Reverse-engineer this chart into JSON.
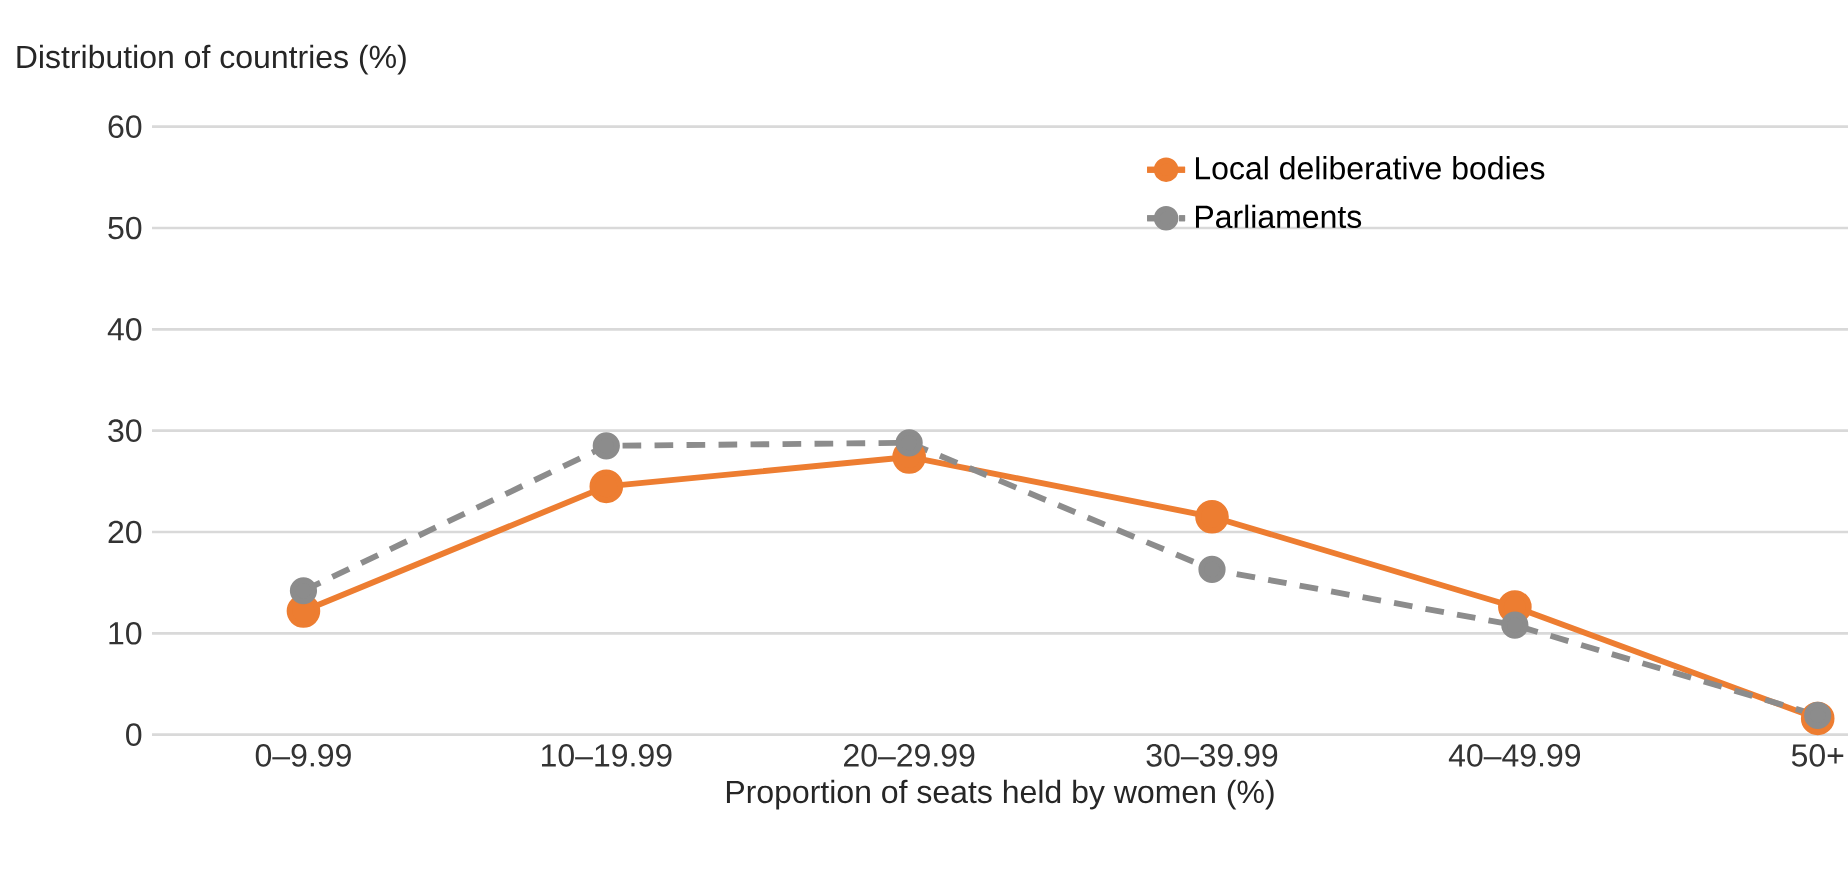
{
  "chart_data": {
    "type": "line",
    "xlabel": "Proportion of seats held by women (%)",
    "ylabel": "Distribution of countries (%)",
    "categories": [
      "0–9.99",
      "10–19.99",
      "20–29.99",
      "30–39.99",
      "40–49.99",
      "50+"
    ],
    "series": [
      {
        "name": "Local deliberative bodies",
        "color": "#ed7d31",
        "line_style": "solid",
        "values": [
          12.2,
          24.5,
          27.4,
          21.5,
          12.6,
          1.6
        ]
      },
      {
        "name": "Parliaments",
        "color": "#8c8c8c",
        "line_style": "dashed",
        "values": [
          14.2,
          28.5,
          28.8,
          16.3,
          10.8,
          1.9
        ]
      }
    ],
    "ylim": [
      0,
      60
    ],
    "yticks": [
      0,
      10,
      20,
      30,
      40,
      50,
      60
    ],
    "grid": "y",
    "legend": "top right",
    "marker": "circle"
  }
}
